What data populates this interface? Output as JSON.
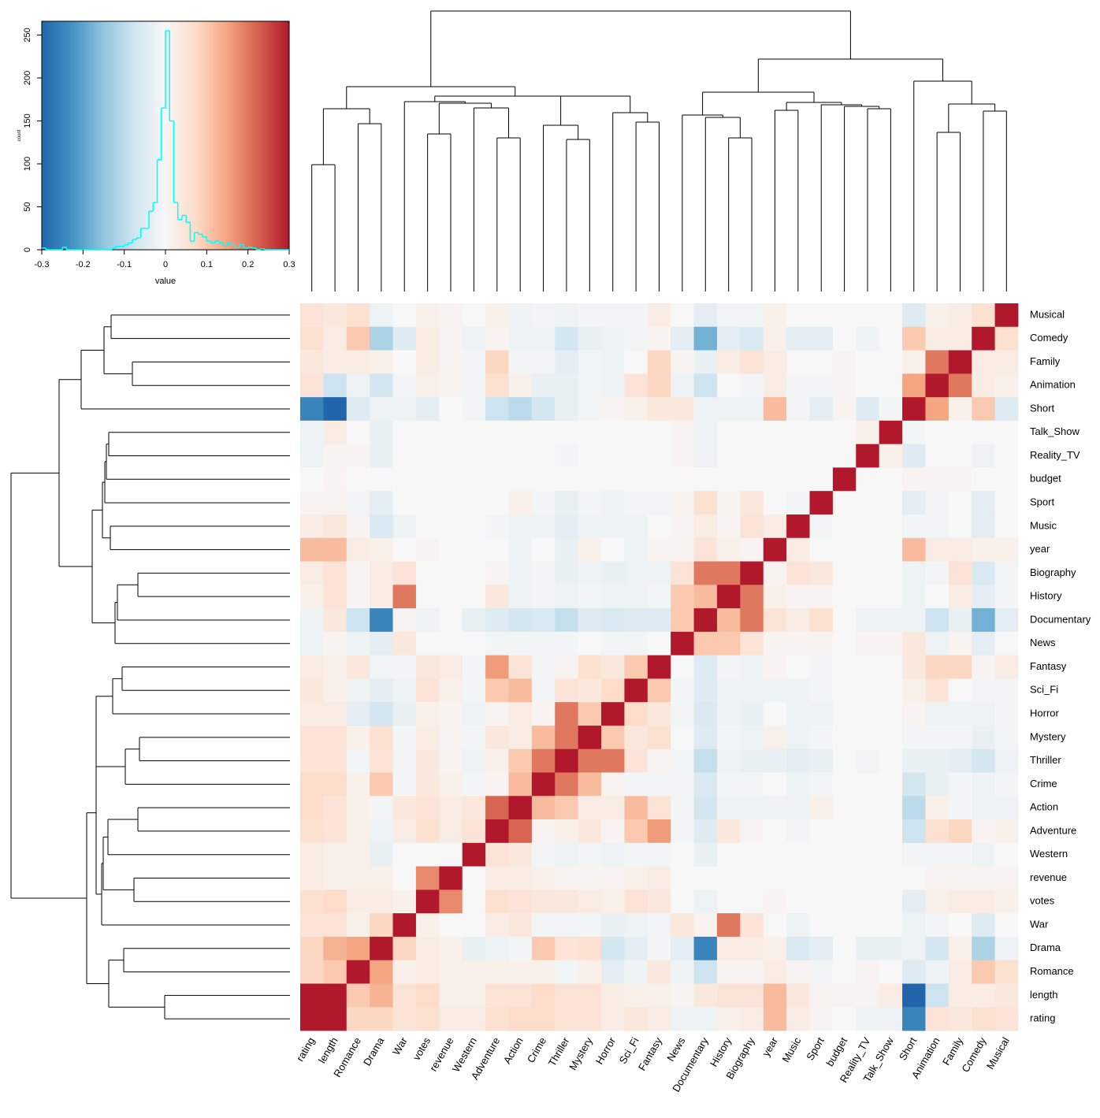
{
  "chart_data": [
    {
      "type": "heatmap",
      "row_labels": [
        "Musical",
        "Comedy",
        "Family",
        "Animation",
        "Short",
        "Talk_Show",
        "Reality_TV",
        "budget",
        "Sport",
        "Music",
        "year",
        "Biography",
        "History",
        "Documentary",
        "News",
        "Fantasy",
        "Sci_Fi",
        "Horror",
        "Mystery",
        "Thriller",
        "Crime",
        "Action",
        "Adventure",
        "Western",
        "revenue",
        "votes",
        "War",
        "Drama",
        "Romance",
        "length",
        "rating"
      ],
      "col_labels": [
        "rating",
        "length",
        "Romance",
        "Drama",
        "War",
        "votes",
        "revenue",
        "Western",
        "Adventure",
        "Action",
        "Crime",
        "Thriller",
        "Mystery",
        "Horror",
        "Sci_Fi",
        "Fantasy",
        "News",
        "Documentary",
        "History",
        "Biography",
        "year",
        "Music",
        "Sport",
        "budget",
        "Reality_TV",
        "Talk_Show",
        "Short",
        "Animation",
        "Family",
        "Comedy",
        "Musical"
      ],
      "palette": [
        "#2166ac",
        "#4393c3",
        "#92c5de",
        "#d1e5f0",
        "#f7f7f7",
        "#fddbc7",
        "#f4a582",
        "#d6604d",
        "#b2182b"
      ],
      "values": [
        [
          0.05,
          0.04,
          0.06,
          -0.02,
          0,
          0.02,
          0.01,
          0,
          0.02,
          -0.02,
          -0.01,
          -0.02,
          -0.01,
          -0.01,
          -0.01,
          0.03,
          0,
          -0.04,
          -0.01,
          -0.01,
          0.02,
          0,
          0,
          0,
          0,
          0,
          -0.05,
          0.02,
          0.03,
          0.06,
          1
        ],
        [
          0.06,
          0.03,
          0.1,
          -0.12,
          -0.05,
          0.03,
          0.01,
          -0.02,
          0.01,
          -0.02,
          -0.02,
          -0.07,
          -0.03,
          -0.02,
          -0.01,
          0.01,
          -0.04,
          -0.18,
          -0.04,
          -0.06,
          0.02,
          -0.04,
          -0.04,
          0,
          -0.02,
          0,
          0.1,
          0.03,
          0.03,
          1,
          0.06
        ],
        [
          0.04,
          0.03,
          0.03,
          0.02,
          0,
          0.03,
          0.01,
          -0.01,
          0.08,
          -0.01,
          -0.01,
          -0.04,
          -0.01,
          -0.02,
          0,
          0.08,
          0.01,
          -0.03,
          0.03,
          0.05,
          0.03,
          0,
          0,
          0.01,
          0,
          0,
          0.02,
          0.2,
          1,
          0.03,
          0.03
        ],
        [
          0.05,
          -0.08,
          -0.02,
          -0.07,
          -0.01,
          0.02,
          0.01,
          -0.01,
          0.06,
          0.02,
          -0.03,
          -0.03,
          -0.01,
          -0.02,
          0.05,
          0.08,
          -0.02,
          -0.08,
          0,
          -0.01,
          0.03,
          -0.01,
          -0.01,
          0.01,
          0,
          0,
          0.15,
          1,
          0.2,
          0.03,
          0.02
        ],
        [
          -0.25,
          -0.3,
          -0.05,
          -0.02,
          -0.02,
          -0.04,
          0,
          -0.01,
          -0.08,
          -0.1,
          -0.07,
          -0.03,
          -0.01,
          0.01,
          0.02,
          0.04,
          0.04,
          -0.02,
          -0.02,
          -0.02,
          0.12,
          -0.01,
          -0.04,
          0.01,
          -0.05,
          -0.01,
          1,
          0.15,
          0.02,
          0.1,
          -0.05
        ],
        [
          -0.02,
          0.03,
          0,
          -0.03,
          0,
          0,
          0,
          0,
          0,
          0,
          0,
          0,
          0,
          0,
          0,
          0,
          0.01,
          -0.02,
          0,
          0,
          0,
          0,
          0,
          0,
          0.02,
          1,
          -0.01,
          0,
          0,
          0,
          0
        ],
        [
          -0.02,
          0.01,
          0.01,
          -0.03,
          0,
          0,
          0,
          0,
          0,
          0,
          0,
          -0.01,
          0,
          0,
          0,
          0,
          0.01,
          -0.02,
          0,
          0,
          0,
          0,
          0,
          0,
          1,
          0.02,
          -0.05,
          0,
          0,
          -0.02,
          0
        ],
        [
          0,
          0.01,
          0,
          0,
          0,
          0,
          0,
          0,
          0,
          0,
          0,
          0,
          0,
          0,
          0,
          0,
          0,
          0,
          0,
          0,
          0,
          0,
          0,
          1,
          0,
          0,
          0.01,
          0.01,
          0.01,
          0,
          0
        ],
        [
          0.01,
          0.01,
          -0.01,
          -0.04,
          0,
          0,
          0,
          0,
          0,
          0.02,
          -0.01,
          -0.03,
          -0.01,
          -0.02,
          -0.01,
          -0.01,
          0.01,
          0.06,
          0.01,
          0.04,
          0,
          -0.01,
          1,
          0,
          0,
          0,
          -0.04,
          -0.01,
          0,
          -0.04,
          0
        ],
        [
          0.03,
          0.04,
          0.01,
          -0.06,
          -0.02,
          0,
          0,
          0,
          -0.01,
          -0.02,
          -0.02,
          -0.04,
          -0.02,
          -0.02,
          -0.02,
          0,
          0.01,
          0.03,
          0.01,
          0.05,
          0.03,
          1,
          -0.01,
          0,
          0,
          0,
          -0.01,
          -0.01,
          0,
          -0.04,
          0
        ],
        [
          0.12,
          0.12,
          0.03,
          0.02,
          0,
          0.01,
          0,
          0,
          0,
          -0.02,
          0,
          -0.03,
          0.02,
          0,
          -0.02,
          0.01,
          0.01,
          0.05,
          0.02,
          0.01,
          1,
          0.03,
          0,
          0,
          0,
          0,
          0.12,
          0.03,
          0.03,
          0.02,
          0.02
        ],
        [
          0.03,
          0.05,
          0.01,
          0.03,
          0.05,
          0,
          0,
          0,
          0.01,
          -0.02,
          -0.01,
          -0.03,
          -0.02,
          -0.03,
          -0.02,
          -0.02,
          0.05,
          0.2,
          0.2,
          1,
          0.01,
          0.05,
          0.04,
          0,
          0,
          0,
          -0.02,
          -0.01,
          0.05,
          -0.06,
          -0.01
        ],
        [
          0.02,
          0.05,
          0.01,
          0.03,
          0.2,
          0,
          0,
          0,
          0.04,
          -0.02,
          -0.01,
          -0.02,
          -0.01,
          -0.02,
          -0.02,
          -0.01,
          0.1,
          0.12,
          1,
          0.2,
          0.02,
          0.01,
          0.01,
          0,
          0,
          0,
          -0.02,
          0,
          0.03,
          -0.04,
          -0.01
        ],
        [
          -0.02,
          0.04,
          -0.08,
          -0.25,
          0.01,
          -0.02,
          0,
          -0.03,
          -0.05,
          -0.07,
          -0.06,
          -0.09,
          -0.05,
          -0.06,
          -0.05,
          -0.05,
          0.1,
          1,
          0.12,
          0.2,
          0.05,
          0.03,
          0.06,
          0,
          -0.02,
          -0.02,
          -0.02,
          -0.08,
          -0.03,
          -0.18,
          -0.04
        ],
        [
          -0.02,
          0.01,
          -0.02,
          -0.04,
          0.04,
          0,
          0,
          0,
          -0.01,
          -0.01,
          -0.01,
          -0.01,
          0,
          -0.01,
          -0.01,
          0,
          1,
          0.1,
          0.1,
          0.05,
          0.01,
          0.01,
          0.01,
          0,
          0.01,
          0.01,
          0.04,
          -0.02,
          0.01,
          -0.04,
          0
        ],
        [
          0.03,
          0.02,
          0.04,
          -0.01,
          -0.01,
          0.04,
          0.03,
          -0.01,
          0.16,
          0.05,
          -0.01,
          0.01,
          0.06,
          0.04,
          0.1,
          1,
          0,
          -0.05,
          -0.01,
          -0.02,
          0.01,
          0,
          -0.01,
          0,
          0,
          0,
          0.04,
          0.08,
          0.08,
          0.01,
          0.03
        ],
        [
          0.04,
          0.02,
          -0.02,
          -0.04,
          -0.02,
          0.05,
          0.02,
          -0.01,
          0.1,
          0.12,
          -0.01,
          0.05,
          0.04,
          0.07,
          1,
          0.1,
          -0.01,
          -0.05,
          -0.02,
          -0.02,
          -0.02,
          -0.02,
          -0.01,
          0,
          0,
          0,
          0.02,
          0.05,
          0,
          -0.01,
          -0.01
        ],
        [
          0.03,
          0.03,
          -0.04,
          -0.07,
          -0.03,
          0.02,
          0.01,
          -0.02,
          0.01,
          0.03,
          0.01,
          0.2,
          0.1,
          1,
          0.07,
          0.04,
          -0.01,
          -0.06,
          -0.02,
          -0.03,
          0,
          -0.02,
          -0.02,
          0,
          0,
          0,
          0.01,
          -0.02,
          -0.02,
          -0.02,
          -0.01
        ],
        [
          0.05,
          0.05,
          0.02,
          0.06,
          -0.01,
          0.03,
          0.01,
          -0.01,
          0.04,
          0.03,
          0.12,
          0.2,
          1,
          0.1,
          0.04,
          0.06,
          0,
          -0.05,
          -0.01,
          -0.02,
          0.02,
          -0.02,
          -0.01,
          0,
          0,
          0,
          -0.01,
          -0.01,
          -0.01,
          -0.03,
          -0.01
        ],
        [
          0.05,
          0.05,
          -0.01,
          0.05,
          -0.01,
          0.04,
          0.01,
          -0.02,
          0.02,
          0.1,
          0.2,
          1,
          0.2,
          0.2,
          0.05,
          0.01,
          -0.01,
          -0.09,
          -0.02,
          -0.03,
          -0.03,
          -0.04,
          -0.03,
          0,
          -0.01,
          0,
          -0.03,
          -0.03,
          -0.04,
          -0.07,
          -0.02
        ],
        [
          0.07,
          0.07,
          0.02,
          0.1,
          -0.01,
          0.04,
          0.02,
          -0.01,
          0.01,
          0.12,
          1,
          0.2,
          0.12,
          0.01,
          -0.01,
          -0.01,
          -0.01,
          -0.06,
          -0.01,
          -0.01,
          0,
          -0.02,
          -0.01,
          0,
          0,
          0,
          -0.07,
          -0.03,
          -0.01,
          -0.02,
          -0.01
        ],
        [
          0.07,
          0.05,
          0.02,
          -0.01,
          0.04,
          0.05,
          0.03,
          0.04,
          0.22,
          1,
          0.12,
          0.1,
          0.03,
          0.03,
          0.12,
          0.05,
          -0.01,
          -0.07,
          -0.02,
          -0.02,
          -0.02,
          -0.02,
          0.02,
          0,
          0,
          0,
          -0.1,
          0.02,
          -0.01,
          -0.02,
          -0.02
        ],
        [
          0.06,
          0.05,
          0.02,
          -0.02,
          0.03,
          0.06,
          0.03,
          0.05,
          1,
          0.22,
          0.01,
          0.02,
          0.04,
          0.01,
          0.1,
          0.16,
          -0.01,
          -0.05,
          0.04,
          0.01,
          0,
          -0.01,
          0,
          0,
          0,
          0,
          -0.08,
          0.06,
          0.08,
          0.01,
          0.02
        ],
        [
          0.03,
          0.02,
          0.02,
          -0.03,
          0,
          0,
          0,
          1,
          0.05,
          0.04,
          -0.01,
          -0.02,
          -0.01,
          -0.02,
          -0.01,
          -0.01,
          0,
          -0.03,
          0,
          0,
          0,
          0,
          0,
          0,
          0,
          0,
          -0.01,
          -0.01,
          -0.01,
          -0.02,
          0
        ],
        [
          0.03,
          0.02,
          0.02,
          0.02,
          0,
          0.18,
          1,
          0,
          0.03,
          0.03,
          0.02,
          0.01,
          0.01,
          0.01,
          0.02,
          0.03,
          0,
          0,
          0,
          0,
          0,
          0,
          0,
          0,
          0,
          0,
          0,
          0.01,
          0.01,
          0.01,
          0.01
        ],
        [
          0.06,
          0.07,
          0.03,
          0.03,
          0.02,
          1,
          0.18,
          0,
          0.06,
          0.05,
          0.04,
          0.04,
          0.03,
          0.02,
          0.05,
          0.04,
          0,
          -0.02,
          0,
          0,
          0.01,
          0,
          0,
          0,
          0,
          0,
          -0.04,
          0.02,
          0.03,
          0.03,
          0.02
        ],
        [
          0.05,
          0.05,
          0.02,
          0.08,
          1,
          0.02,
          0,
          0,
          0.03,
          0.04,
          -0.01,
          -0.01,
          -0.01,
          -0.03,
          -0.02,
          -0.01,
          0.04,
          0.01,
          0.2,
          0.05,
          0,
          -0.02,
          0,
          0,
          0,
          0,
          -0.02,
          -0.01,
          0,
          -0.05,
          0
        ],
        [
          0.08,
          0.13,
          0.15,
          1,
          0.08,
          0.03,
          0.02,
          -0.03,
          -0.02,
          -0.01,
          0.1,
          0.05,
          0.06,
          -0.07,
          -0.04,
          -0.01,
          -0.04,
          -0.25,
          0.03,
          0.03,
          0.02,
          -0.06,
          -0.04,
          0,
          -0.03,
          -0.03,
          -0.02,
          -0.07,
          0.02,
          -0.12,
          -0.02
        ],
        [
          0.08,
          0.1,
          1,
          0.15,
          0.02,
          0.03,
          0.02,
          0.02,
          0.02,
          0.02,
          0.02,
          -0.01,
          0.02,
          -0.04,
          -0.02,
          0.04,
          -0.02,
          -0.08,
          0.01,
          0.01,
          0.03,
          0.01,
          -0.01,
          0,
          0.01,
          0,
          -0.05,
          -0.02,
          0.03,
          0.1,
          0.06
        ],
        [
          0.35,
          1,
          0.1,
          0.13,
          0.05,
          0.07,
          0.02,
          0.02,
          0.05,
          0.05,
          0.07,
          0.05,
          0.05,
          0.03,
          0.02,
          0.02,
          0.01,
          0.04,
          0.05,
          0.05,
          0.12,
          0.04,
          0.01,
          0.01,
          0.01,
          0.03,
          -0.3,
          -0.08,
          0.03,
          0.03,
          0.04
        ],
        [
          1,
          0.35,
          0.08,
          0.08,
          0.05,
          0.06,
          0.03,
          0.03,
          0.06,
          0.07,
          0.07,
          0.05,
          0.05,
          0.03,
          0.04,
          0.03,
          -0.02,
          -0.02,
          0.02,
          0.03,
          0.12,
          0.03,
          0.01,
          0,
          -0.02,
          -0.02,
          -0.25,
          0.05,
          0.04,
          0.06,
          0.05
        ]
      ]
    },
    {
      "type": "histogram",
      "x_label": "value",
      "y_label": "count",
      "color": "#00ffff",
      "bins": [
        -0.3,
        -0.29,
        -0.28,
        -0.27,
        -0.26,
        -0.25,
        -0.24,
        -0.23,
        -0.22,
        -0.21,
        -0.2,
        -0.19,
        -0.18,
        -0.17,
        -0.16,
        -0.15,
        -0.14,
        -0.13,
        -0.12,
        -0.11,
        -0.1,
        -0.09,
        -0.08,
        -0.07,
        -0.06,
        -0.05,
        -0.04,
        -0.03,
        -0.02,
        -0.01,
        0,
        0.01,
        0.02,
        0.03,
        0.04,
        0.05,
        0.06,
        0.07,
        0.08,
        0.09,
        0.1,
        0.11,
        0.12,
        0.13,
        0.14,
        0.15,
        0.16,
        0.17,
        0.18,
        0.19,
        0.2,
        0.21,
        0.22,
        0.23,
        0.24,
        0.25,
        0.26,
        0.27,
        0.28,
        0.29,
        0.3
      ],
      "counts": [
        2,
        0,
        0,
        0,
        0,
        3,
        0,
        0,
        0,
        0,
        0,
        0,
        0,
        0,
        0,
        0,
        0,
        2,
        4,
        4,
        6,
        8,
        12,
        14,
        25,
        25,
        45,
        55,
        105,
        165,
        255,
        150,
        55,
        35,
        40,
        32,
        10,
        20,
        18,
        15,
        10,
        8,
        10,
        8,
        5,
        8,
        5,
        3,
        6,
        2,
        3,
        2,
        0,
        1,
        0,
        0,
        0,
        0,
        0,
        0
      ],
      "xlim": [
        -0.3,
        0.3
      ],
      "ylim": [
        0,
        266
      ],
      "xticks": [
        -0.3,
        -0.2,
        -0.1,
        0,
        0.1,
        0.2,
        0.3
      ],
      "yticks": [
        0,
        50,
        100,
        150,
        200,
        250
      ]
    }
  ]
}
